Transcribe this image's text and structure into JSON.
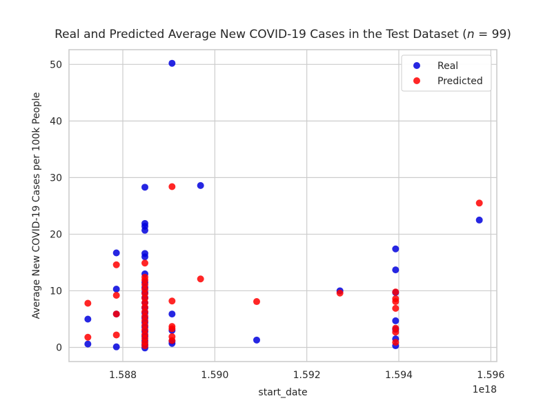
{
  "chart_data": {
    "type": "scatter",
    "title": "Real and Predicted Average New COVID-19 Cases in the Test Dataset (",
    "title_n": "n",
    "title_tail": "  = 99)",
    "xlabel": "start_date",
    "ylabel": "Average New COVID-19 Cases per 100k People",
    "x_offset_label": "1e18",
    "xlim": [
      1.58683,
      1.59613
    ],
    "ylim": [
      -2.5,
      52.6
    ],
    "xticks": [
      1.588,
      1.59,
      1.592,
      1.594,
      1.596
    ],
    "xtick_labels": [
      "1.588",
      "1.590",
      "1.592",
      "1.594",
      "1.596"
    ],
    "yticks": [
      0,
      10,
      20,
      30,
      40,
      50
    ],
    "ytick_labels": [
      "0",
      "10",
      "20",
      "30",
      "40",
      "50"
    ],
    "grid": true,
    "legend": "top-right",
    "series": [
      {
        "name": "Real",
        "color": "#0000dd",
        "points": [
          [
            1.58724,
            0.6
          ],
          [
            1.58724,
            5.0
          ],
          [
            1.58786,
            0.1
          ],
          [
            1.58786,
            5.9
          ],
          [
            1.58786,
            10.3
          ],
          [
            1.58786,
            16.7
          ],
          [
            1.58848,
            -0.1
          ],
          [
            1.58848,
            0.5
          ],
          [
            1.58848,
            1.2
          ],
          [
            1.58848,
            2.0
          ],
          [
            1.58848,
            2.8
          ],
          [
            1.58848,
            3.6
          ],
          [
            1.58848,
            4.4
          ],
          [
            1.58848,
            5.2
          ],
          [
            1.58848,
            6.1
          ],
          [
            1.58848,
            7.0
          ],
          [
            1.58848,
            7.9
          ],
          [
            1.58848,
            8.8
          ],
          [
            1.58848,
            9.7
          ],
          [
            1.58848,
            10.6
          ],
          [
            1.58848,
            11.5
          ],
          [
            1.58848,
            13.0
          ],
          [
            1.58848,
            16.0
          ],
          [
            1.58848,
            16.6
          ],
          [
            1.58848,
            20.7
          ],
          [
            1.58848,
            21.4
          ],
          [
            1.58848,
            21.9
          ],
          [
            1.58848,
            28.3
          ],
          [
            1.58907,
            0.7
          ],
          [
            1.58907,
            1.1
          ],
          [
            1.58907,
            3.0
          ],
          [
            1.58907,
            5.9
          ],
          [
            1.58907,
            50.2
          ],
          [
            1.58969,
            28.6
          ],
          [
            1.59091,
            1.3
          ],
          [
            1.59272,
            10.0
          ],
          [
            1.59393,
            0.3
          ],
          [
            1.59393,
            1.5
          ],
          [
            1.59393,
            3.2
          ],
          [
            1.59393,
            4.7
          ],
          [
            1.59393,
            9.7
          ],
          [
            1.59393,
            13.7
          ],
          [
            1.59393,
            17.4
          ],
          [
            1.59575,
            22.5
          ]
        ]
      },
      {
        "name": "Predicted",
        "color": "#ff0000",
        "points": [
          [
            1.58724,
            1.8
          ],
          [
            1.58724,
            7.8
          ],
          [
            1.58786,
            2.2
          ],
          [
            1.58786,
            5.9
          ],
          [
            1.58786,
            9.2
          ],
          [
            1.58786,
            14.6
          ],
          [
            1.58848,
            0.3
          ],
          [
            1.58848,
            0.9
          ],
          [
            1.58848,
            1.6
          ],
          [
            1.58848,
            2.3
          ],
          [
            1.58848,
            3.1
          ],
          [
            1.58848,
            3.9
          ],
          [
            1.58848,
            4.7
          ],
          [
            1.58848,
            5.5
          ],
          [
            1.58848,
            6.3
          ],
          [
            1.58848,
            7.1
          ],
          [
            1.58848,
            7.9
          ],
          [
            1.58848,
            8.7
          ],
          [
            1.58848,
            9.5
          ],
          [
            1.58848,
            10.3
          ],
          [
            1.58848,
            11.1
          ],
          [
            1.58848,
            11.9
          ],
          [
            1.58848,
            12.4
          ],
          [
            1.58848,
            14.9
          ],
          [
            1.58907,
            1.2
          ],
          [
            1.58907,
            1.9
          ],
          [
            1.58907,
            3.3
          ],
          [
            1.58907,
            3.7
          ],
          [
            1.58907,
            8.2
          ],
          [
            1.58907,
            28.4
          ],
          [
            1.58969,
            12.1
          ],
          [
            1.59091,
            8.1
          ],
          [
            1.59272,
            9.6
          ],
          [
            1.59393,
            0.9
          ],
          [
            1.59393,
            2.7
          ],
          [
            1.59393,
            3.4
          ],
          [
            1.59393,
            6.9
          ],
          [
            1.59393,
            8.1
          ],
          [
            1.59393,
            8.6
          ],
          [
            1.59393,
            9.8
          ],
          [
            1.59575,
            25.5
          ]
        ]
      }
    ]
  }
}
